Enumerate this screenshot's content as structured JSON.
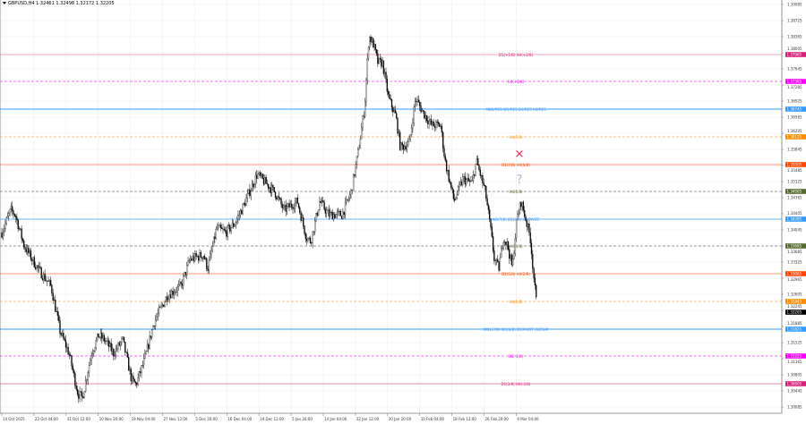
{
  "window": {
    "symbol_info": "GBPUSD,H4  1.32461 1.32498 1.32172 1.32205"
  },
  "chart_data": {
    "type": "candlestick",
    "symbol": "GBPUSD",
    "timeframe": "H4",
    "last_ohlc": {
      "open": 1.32461,
      "high": 1.32498,
      "low": 1.32172,
      "close": 1.32205
    },
    "ylim": [
      1.29885,
      1.39125
    ],
    "grid": true,
    "y_ticks": [
      "1.39085",
      "1.38725",
      "1.38365",
      "1.38005",
      "1.37645",
      "1.37285",
      "1.36925",
      "1.36565",
      "1.36205",
      "1.35845",
      "1.35485",
      "1.35125",
      "1.34765",
      "1.34405",
      "1.34045",
      "1.33685",
      "1.33325",
      "1.32965",
      "1.32605",
      "1.32245",
      "1.31885",
      "1.31525",
      "1.31165",
      "1.30805",
      "1.30445",
      "1.30085"
    ],
    "x_ticks": [
      "14 Oct 2025",
      "23 Oct 04:00",
      "31 Oct 12:00",
      "10 Nov 20:00",
      "19 Nov 04:00",
      "27 Nov 12:00",
      "5 Dec 20:00",
      "16 Dec 04:00",
      "24 Dec 12:00",
      "5 Jan 20:00",
      "14 Jan 04:00",
      "22 Jan 12:00",
      "30 Jan 20:00",
      "10 Feb 04:00",
      "18 Feb 12:00",
      "26 Feb 20:00",
      "9 Mar 04:00"
    ],
    "price_path": [
      [
        0,
        1.33985
      ],
      [
        10,
        1.34485
      ],
      [
        15,
        1.34385
      ],
      [
        25,
        1.33685
      ],
      [
        40,
        1.33185
      ],
      [
        55,
        1.32785
      ],
      [
        65,
        1.31785
      ],
      [
        75,
        1.31285
      ],
      [
        85,
        1.30385
      ],
      [
        90,
        1.30285
      ],
      [
        100,
        1.31285
      ],
      [
        108,
        1.31685
      ],
      [
        115,
        1.31585
      ],
      [
        125,
        1.31285
      ],
      [
        135,
        1.31585
      ],
      [
        145,
        1.30685
      ],
      [
        150,
        1.30585
      ],
      [
        160,
        1.31185
      ],
      [
        170,
        1.31985
      ],
      [
        185,
        1.32585
      ],
      [
        200,
        1.32785
      ],
      [
        210,
        1.33385
      ],
      [
        225,
        1.33485
      ],
      [
        230,
        1.33185
      ],
      [
        240,
        1.34085
      ],
      [
        250,
        1.33985
      ],
      [
        260,
        1.34185
      ],
      [
        270,
        1.34585
      ],
      [
        285,
        1.35285
      ],
      [
        295,
        1.35085
      ],
      [
        305,
        1.34885
      ],
      [
        315,
        1.34485
      ],
      [
        330,
        1.34685
      ],
      [
        340,
        1.33885
      ],
      [
        345,
        1.33785
      ],
      [
        355,
        1.34685
      ],
      [
        365,
        1.34385
      ],
      [
        380,
        1.34385
      ],
      [
        390,
        1.34885
      ],
      [
        398,
        1.35785
      ],
      [
        405,
        1.36785
      ],
      [
        410,
        1.38385
      ],
      [
        415,
        1.38185
      ],
      [
        420,
        1.37785
      ],
      [
        425,
        1.37785
      ],
      [
        432,
        1.36985
      ],
      [
        440,
        1.36585
      ],
      [
        445,
        1.35885
      ],
      [
        455,
        1.35985
      ],
      [
        462,
        1.36985
      ],
      [
        470,
        1.36685
      ],
      [
        480,
        1.36385
      ],
      [
        490,
        1.36385
      ],
      [
        495,
        1.35585
      ],
      [
        505,
        1.34685
      ],
      [
        515,
        1.35185
      ],
      [
        525,
        1.35085
      ],
      [
        530,
        1.35585
      ],
      [
        540,
        1.34885
      ],
      [
        545,
        1.34185
      ],
      [
        550,
        1.33385
      ],
      [
        555,
        1.33185
      ],
      [
        560,
        1.33885
      ],
      [
        565,
        1.33685
      ],
      [
        570,
        1.33185
      ],
      [
        575,
        1.34285
      ],
      [
        580,
        1.34685
      ],
      [
        585,
        1.34285
      ],
      [
        590,
        1.33885
      ],
      [
        595,
        1.32785
      ],
      [
        598,
        1.32205
      ]
    ],
    "current_price": {
      "value": "1.32205",
      "color": "#000000"
    },
    "levels": [
      {
        "label": "D1(+1/8) H4(+2/8)",
        "price": 1.37965,
        "value": "1.37965",
        "color": "#d61f78",
        "line": "#f2a6c8",
        "dash": false
      },
      {
        "label": "H4(+1/8)",
        "price": 1.37365,
        "value": "1.37365",
        "color": "#ff00ff",
        "line": "#ff66ff",
        "dash": true
      },
      {
        "label": "MN1/RES W1/RES D1/RES H4/RES",
        "price": 1.36745,
        "value": "1.36745",
        "color": "#3399ff",
        "line": "#3399ff",
        "dash": false
      },
      {
        "label": "H4(7/8)",
        "price": 1.36125,
        "value": "1.36125",
        "color": "#ff8c00",
        "line": "#ffc080",
        "dash": true
      },
      {
        "label": "D1(7/8) H4(6/8)",
        "price": 1.35505,
        "value": "1.35505",
        "color": "#ff4500",
        "line": "#ff9a78",
        "dash": false
      },
      {
        "label": "H4(5/8)",
        "price": 1.34905,
        "value": "1.34905",
        "color": "#556b2f",
        "line": "#9a9a9a",
        "dash": true
      },
      {
        "label": "W1(7/8) D1(6/8) H4/PIVOT",
        "price": 1.34285,
        "value": "1.34285",
        "color": "#3399ff",
        "line": "#66b3ff",
        "dash": false
      },
      {
        "label": "H4(3/8)",
        "price": 1.33685,
        "value": "1.33685",
        "color": "#556b2f",
        "line": "#9a9a9a",
        "dash": true
      },
      {
        "label": "D1(5/8) H4(2/8)",
        "price": 1.33065,
        "value": "1.33065",
        "color": "#ff4500",
        "line": "#ff9a78",
        "dash": false
      },
      {
        "label": "H4(1/8)",
        "price": 1.32445,
        "value": "1.32445",
        "color": "#ff8c00",
        "line": "#ffc080",
        "dash": true
      },
      {
        "label": "MN1(7/8) W1(6/8) D1/PIVOT H4/SUP",
        "price": 1.31825,
        "value": "1.31825",
        "color": "#3399ff",
        "line": "#3399ff",
        "dash": false
      },
      {
        "label": "H4(-1/8)",
        "price": 1.31225,
        "value": "1.31225",
        "color": "#ff00ff",
        "line": "#ff66ff",
        "dash": true
      },
      {
        "label": "D1(3/8) H4(-2/8)",
        "price": 1.30605,
        "value": "1.30605",
        "color": "#d61f78",
        "line": "#e88ab5",
        "dash": false
      }
    ],
    "annotations": [
      {
        "text": "✕",
        "price": 1.35665,
        "color": "#ff3366"
      },
      {
        "text": "?",
        "price": 1.35165,
        "color": "#b0b0e0"
      }
    ]
  }
}
